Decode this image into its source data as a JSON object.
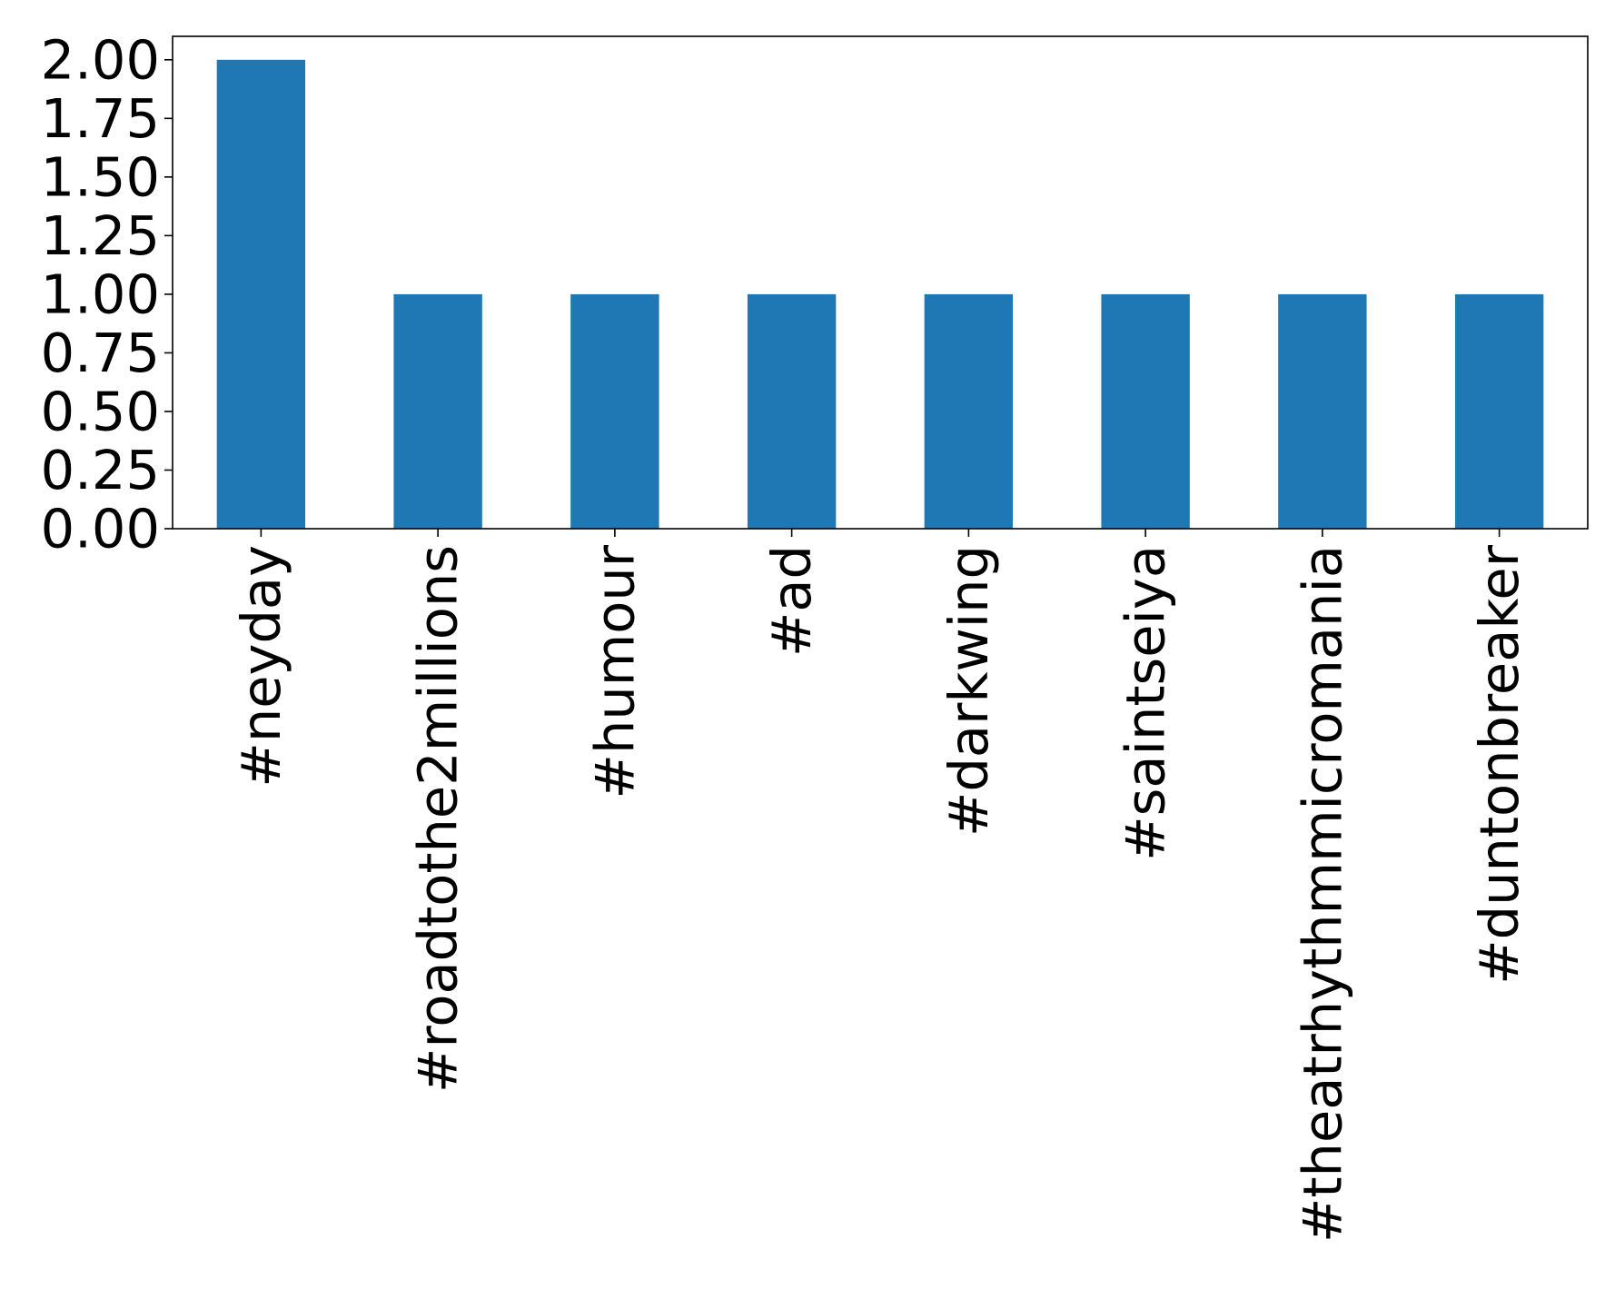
{
  "chart_data": {
    "type": "bar",
    "categories": [
      "#neyday",
      "#roadtothe2millions",
      "#humour",
      "#ad",
      "#darkwing",
      "#saintseiya",
      "#theatrhythmmicromania",
      "#duntonbreaker"
    ],
    "values": [
      2,
      1,
      1,
      1,
      1,
      1,
      1,
      1
    ],
    "title": "",
    "xlabel": "",
    "ylabel": "",
    "ylim": [
      0,
      2.1
    ],
    "yticks": [
      "0.00",
      "0.25",
      "0.50",
      "0.75",
      "1.00",
      "1.25",
      "1.50",
      "1.75",
      "2.00"
    ],
    "bar_color": "#1f77b4",
    "grid": false,
    "legend": "none"
  }
}
